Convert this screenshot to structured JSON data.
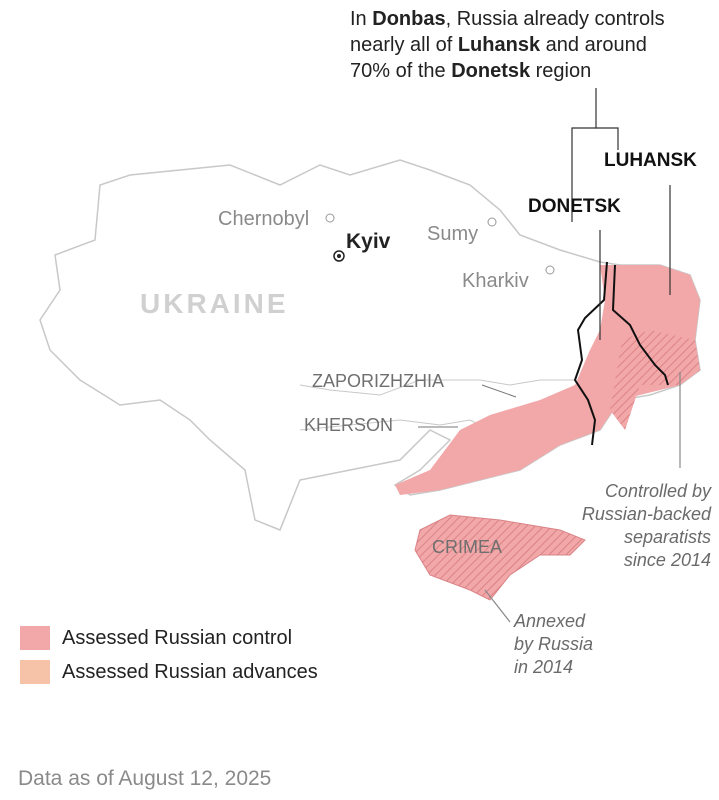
{
  "headline": {
    "parts": [
      "In ",
      "Donbas",
      ", Russia already controls",
      "nearly all of ",
      "Luhansk",
      " and around",
      "70% of the ",
      "Donetsk",
      " region"
    ]
  },
  "labels": {
    "country": "UKRAINE",
    "capital": "Kyiv",
    "cities": [
      "Chernobyl",
      "Sumy",
      "Kharkiv"
    ],
    "oblasts": {
      "zaporizhzhia": "ZAPORIZHZHIA",
      "kherson": "KHERSON",
      "crimea": "CRIMEA",
      "donetsk": "DONETSK",
      "luhansk": "LUHANSK"
    }
  },
  "notes": {
    "separatists": [
      "Controlled by",
      "Russian-backed",
      "separatists",
      "since 2014"
    ],
    "crimea": [
      "Annexed",
      "by Russia",
      "in 2014"
    ]
  },
  "legend": [
    {
      "label": "Assessed Russian control",
      "color": "#f2a7a9"
    },
    {
      "label": "Assessed Russian advances",
      "color": "#f7c3a8"
    }
  ],
  "footer": "Data as of August 12, 2025",
  "colors": {
    "control": "#f2a7a9",
    "hatch": "#d98386",
    "border": "#c8c8c8",
    "oblast_highlight": "#111111"
  }
}
